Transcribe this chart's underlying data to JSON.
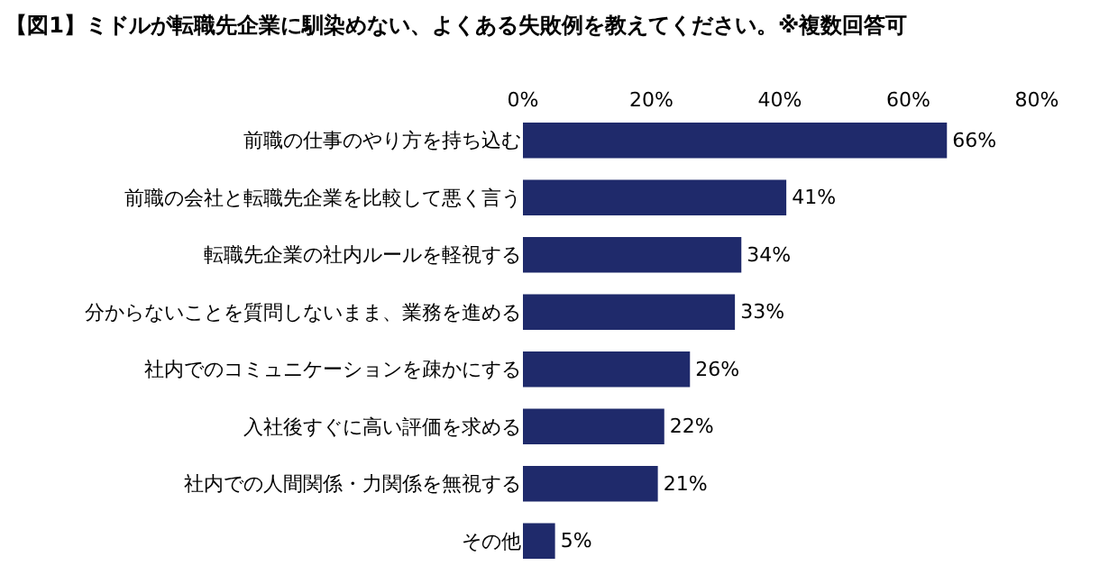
{
  "chart_data": {
    "type": "bar",
    "orientation": "horizontal",
    "title": "【図1】ミドルが転職先企業に馴染めない、よくある失敗例を教えてください。※複数回答可",
    "categories": [
      "前職の仕事のやり方を持ち込む",
      "前職の会社と転職先企業を比較して悪く言う",
      "転職先企業の社内ルールを軽視する",
      "分からないことを質問しないまま、業務を進める",
      "社内でのコミュニケーションを疎かにする",
      "入社後すぐに高い評価を求める",
      "社内での人間関係・力関係を無視する",
      "その他"
    ],
    "values": [
      66,
      41,
      34,
      33,
      26,
      22,
      21,
      5
    ],
    "value_labels": [
      "66%",
      "41%",
      "34%",
      "33%",
      "26%",
      "22%",
      "21%",
      "5%"
    ],
    "color": "#1f2a6b",
    "xlim": [
      0,
      80
    ],
    "xticks": [
      {
        "value": 0,
        "label": "0%"
      },
      {
        "value": 20,
        "label": "20%"
      },
      {
        "value": 40,
        "label": "40%"
      },
      {
        "value": 60,
        "label": "60%"
      },
      {
        "value": 80,
        "label": "80%"
      }
    ],
    "grid": false,
    "legend": false
  }
}
